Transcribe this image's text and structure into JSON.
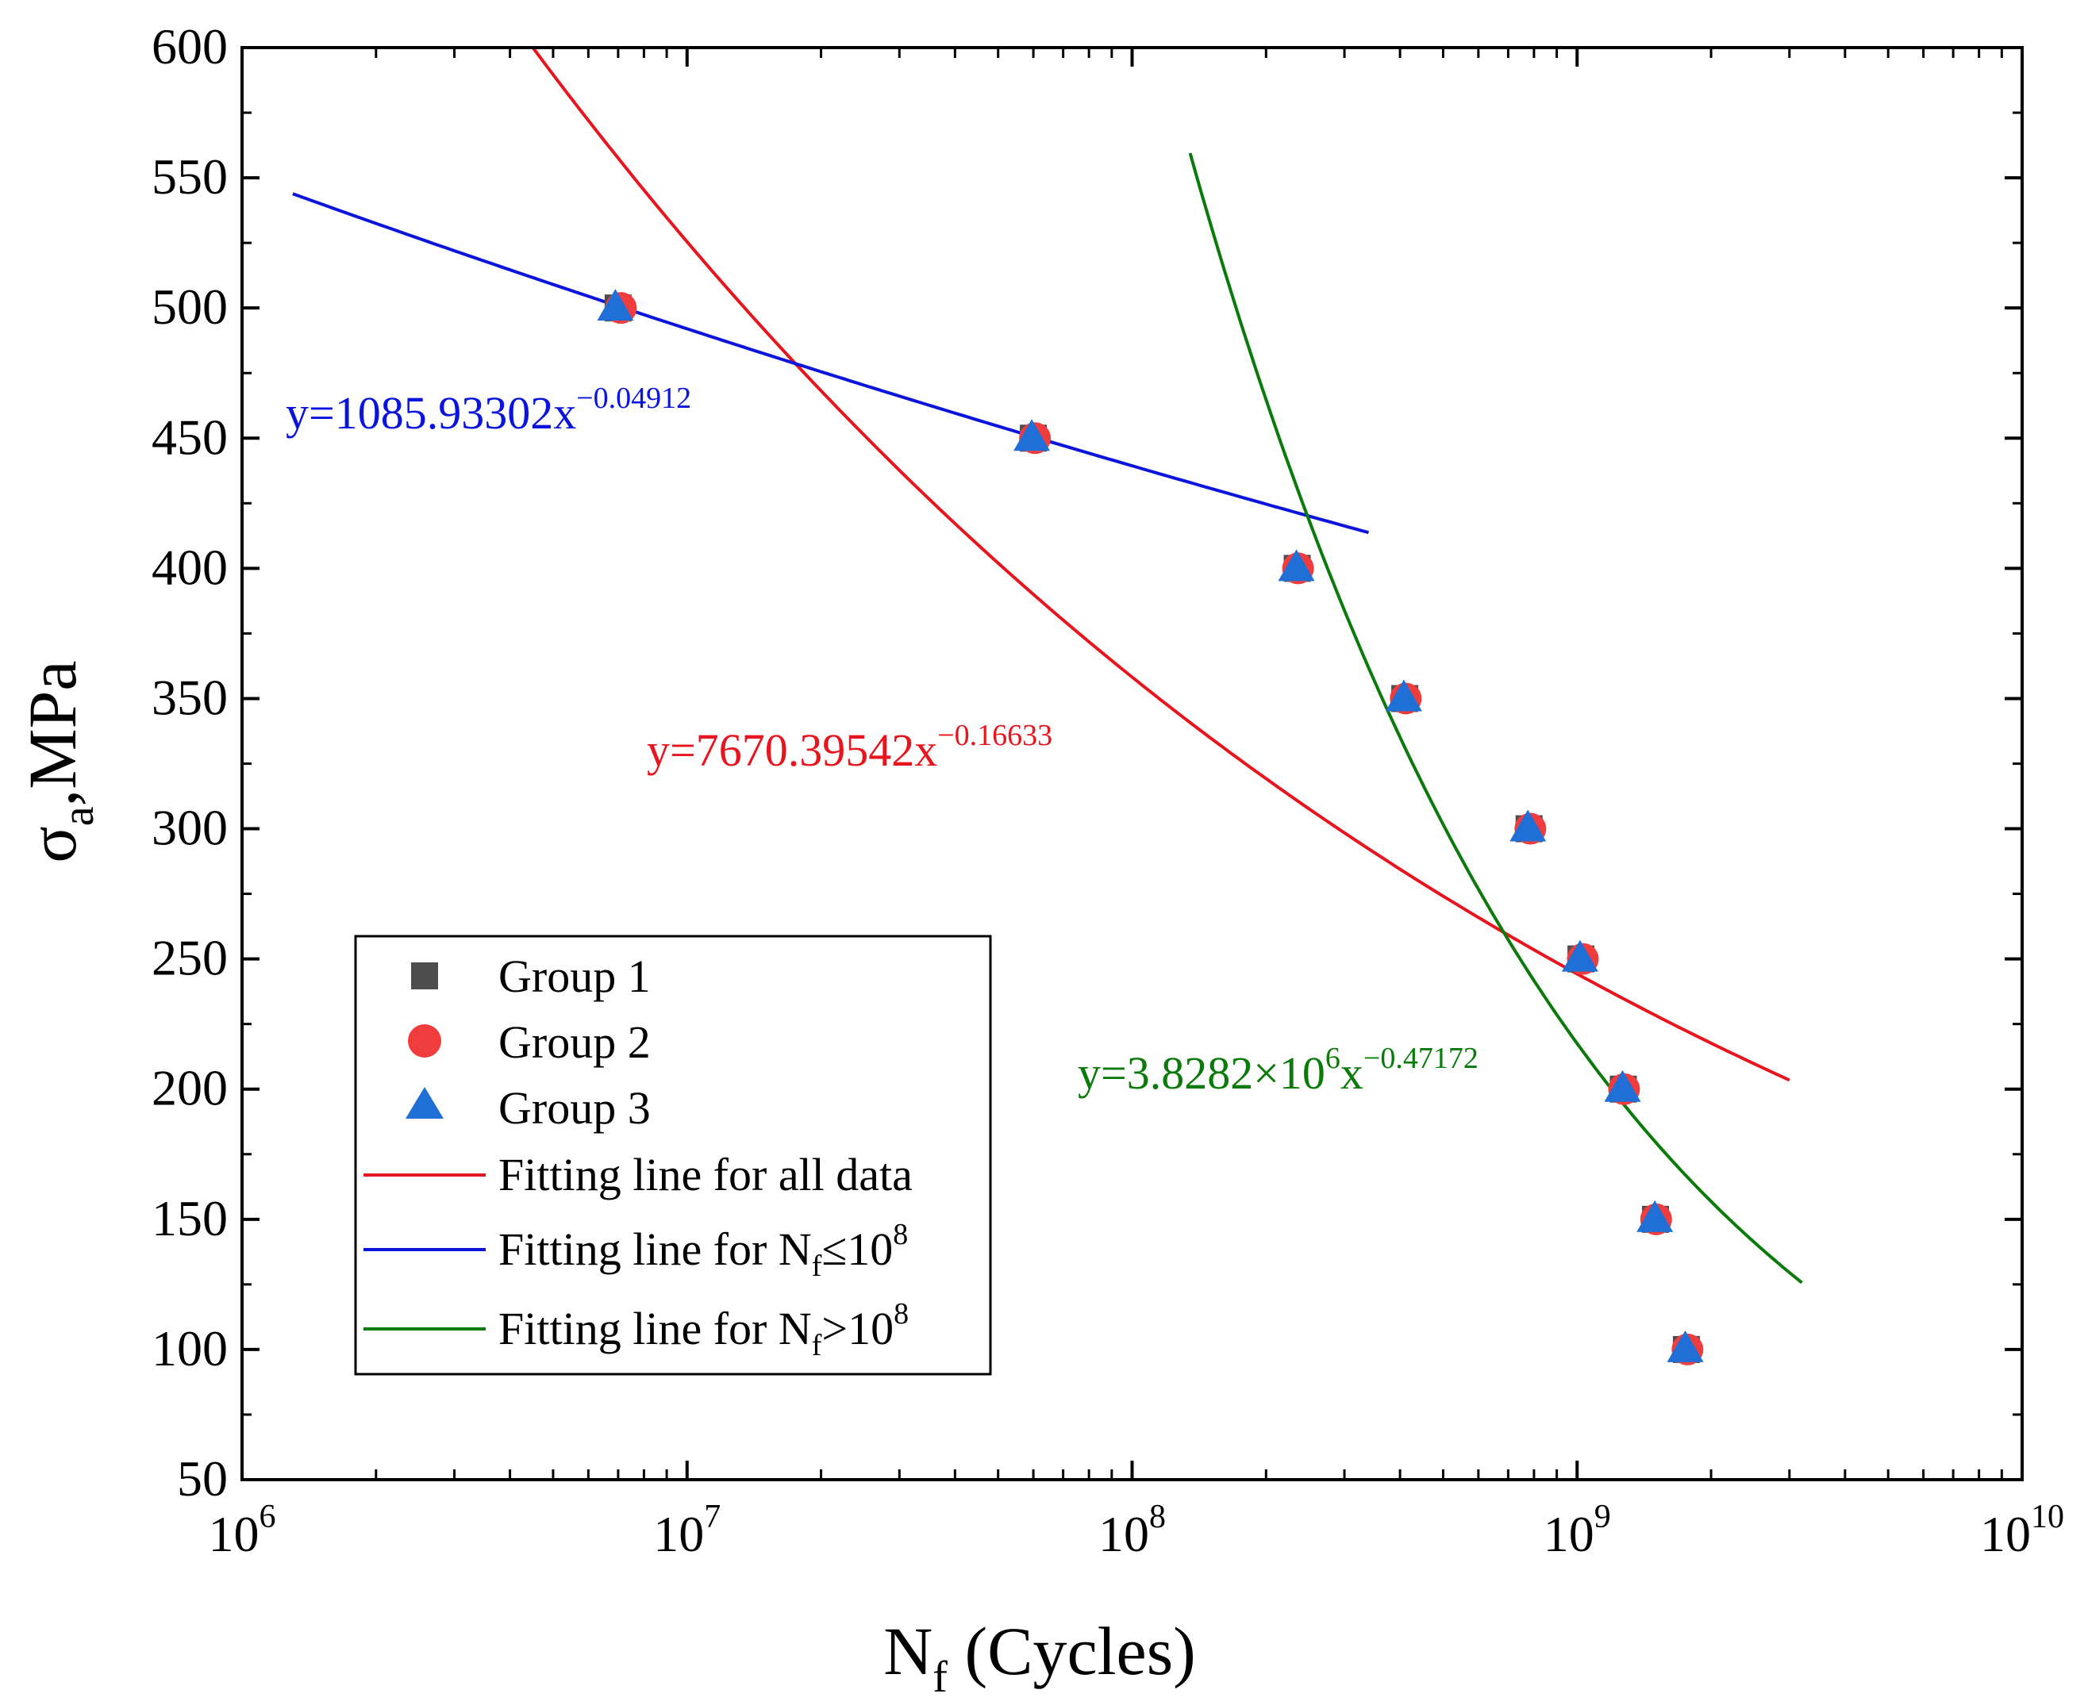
{
  "chart_data": {
    "type": "scatter",
    "xscale": "log",
    "xlim": [
      1000000,
      10000000000
    ],
    "ylim": [
      50,
      600
    ],
    "xlabel": {
      "main": "N",
      "sub": "f",
      "rest": " (Cycles)"
    },
    "ylabel": {
      "main": "σ",
      "sub": "a",
      "rest": ",MPa"
    },
    "y_ticks": [
      50,
      100,
      150,
      200,
      250,
      300,
      350,
      400,
      450,
      500,
      550,
      600
    ],
    "x_ticks": [
      {
        "value": 1000000,
        "base": "10",
        "exp": "6"
      },
      {
        "value": 10000000,
        "base": "10",
        "exp": "7"
      },
      {
        "value": 100000000,
        "base": "10",
        "exp": "8"
      },
      {
        "value": 1000000000,
        "base": "10",
        "exp": "9"
      },
      {
        "value": 10000000000,
        "base": "10",
        "exp": "10"
      }
    ],
    "series": [
      {
        "name": "Group 1",
        "marker": "square",
        "color": "#4d4d4d",
        "points": [
          [
            7000000,
            500
          ],
          [
            60000000,
            450
          ],
          [
            235000000,
            400
          ],
          [
            410000000,
            350
          ],
          [
            780000000,
            300
          ],
          [
            1020000000,
            250
          ],
          [
            1270000000,
            200
          ],
          [
            1500000000,
            150
          ],
          [
            1760000000,
            100
          ]
        ]
      },
      {
        "name": "Group 2",
        "marker": "circle",
        "color": "#f03c3c",
        "points": [
          [
            7100000,
            500
          ],
          [
            60500000,
            450
          ],
          [
            236000000,
            400
          ],
          [
            412000000,
            350
          ],
          [
            785000000,
            300
          ],
          [
            1030000000,
            250
          ],
          [
            1275000000,
            200
          ],
          [
            1505000000,
            150
          ],
          [
            1770000000,
            100
          ]
        ]
      },
      {
        "name": "Group 3",
        "marker": "triangle",
        "color": "#1f6fd6",
        "points": [
          [
            6900000,
            500
          ],
          [
            59500000,
            450
          ],
          [
            234000000,
            400
          ],
          [
            408000000,
            350
          ],
          [
            775000000,
            300
          ],
          [
            1015000000,
            250
          ],
          [
            1265000000,
            200
          ],
          [
            1495000000,
            150
          ],
          [
            1750000000,
            100
          ]
        ]
      }
    ],
    "fits": [
      {
        "name": "Fitting line for all data",
        "color": "#e8141e",
        "coef": 7670.39542,
        "exp": -0.16633,
        "x_range": [
          4500000,
          3000000000
        ]
      },
      {
        "name": "Fitting line for N_f≤10^8",
        "color": "#0a14dc",
        "coef": 1085.93302,
        "exp": -0.04912,
        "x_range": [
          1300000,
          340000000
        ]
      },
      {
        "name": "Fitting line for N_f>10^8",
        "color": "#0a7a0a",
        "coef": 3828200,
        "exp": -0.47172,
        "x_range": [
          135000000,
          3200000000
        ]
      }
    ],
    "equations": [
      {
        "color": "#0a14dc",
        "base": "y=1085.93302x",
        "exp": "−0.04912"
      },
      {
        "color": "#e8141e",
        "base": "y=7670.39542x",
        "exp": "−0.16633"
      },
      {
        "color": "#0a7a0a",
        "base": "y=3.8282×10",
        "exp1": "6",
        "mid": "x",
        "exp": "−0.47172"
      }
    ],
    "legend": {
      "position": "lower-left",
      "items": [
        {
          "text": "Group 1"
        },
        {
          "text": "Group 2"
        },
        {
          "text": "Group 3"
        },
        {
          "text": "Fitting line for all data"
        },
        {
          "pre": "Fitting line for N",
          "sub": "f",
          "mid": "≤10",
          "sup": "8"
        },
        {
          "pre": "Fitting line for N",
          "sub": "f",
          "mid": ">10",
          "sup": "8"
        }
      ]
    }
  }
}
